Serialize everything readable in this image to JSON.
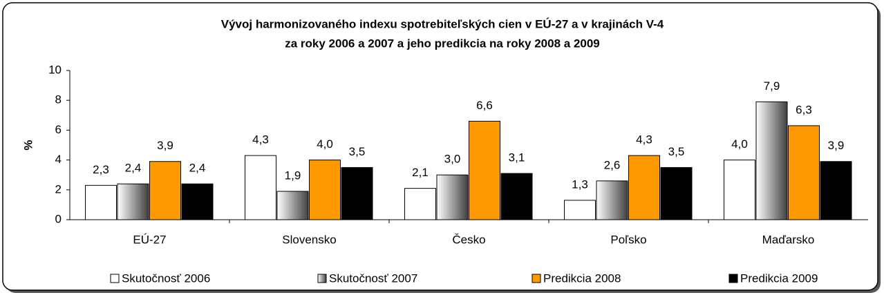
{
  "chart_data": {
    "type": "bar",
    "title": [
      "Vývoj harmonizovaného indexu spotrebiteľských cien v EÚ-27 a v krajinách V-4",
      "za roky 2006 a 2007 a jeho predikcia na roky 2008 a 2009"
    ],
    "y_label": "%",
    "categories": [
      "EÚ-27",
      "Slovensko",
      "Česko",
      "Poľsko",
      "Maďarsko"
    ],
    "series": [
      {
        "name": "Skutočnosť 2006",
        "color": "#ffffff",
        "values": [
          2.3,
          4.3,
          2.1,
          1.3,
          4.0
        ],
        "value_labels": [
          "2,3",
          "4,3",
          "2,1",
          "1,3",
          "4,0"
        ]
      },
      {
        "name": "Skutočnosť 2007",
        "color": "#a0a0a0",
        "values": [
          2.4,
          1.9,
          3.0,
          2.6,
          7.9
        ],
        "value_labels": [
          "2,4",
          "1,9",
          "3,0",
          "2,6",
          "7,9"
        ]
      },
      {
        "name": "Predikcia 2008",
        "color": "#ff9900",
        "values": [
          3.9,
          4.0,
          6.6,
          4.3,
          6.3
        ],
        "value_labels": [
          "3,9",
          "4,0",
          "6,6",
          "4,3",
          "6,3"
        ]
      },
      {
        "name": "Predikcia 2009",
        "color": "#000000",
        "values": [
          2.4,
          3.5,
          3.1,
          3.5,
          3.9
        ],
        "value_labels": [
          "2,4",
          "3,5",
          "3,1",
          "3,5",
          "3,9"
        ]
      }
    ],
    "ylim": [
      0,
      10
    ],
    "yticks": [
      0,
      2,
      4,
      6,
      8,
      10
    ],
    "legend": "bottom"
  }
}
